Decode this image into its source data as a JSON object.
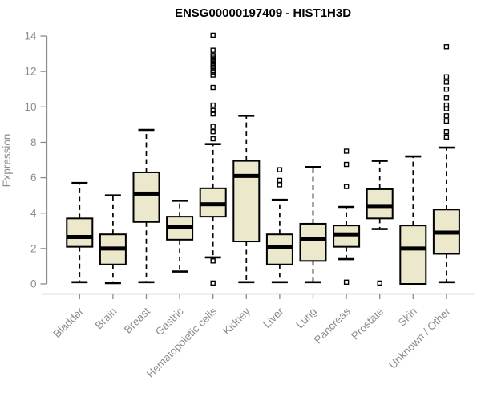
{
  "title": "ENSG00000197409 - HIST1H3D",
  "colors": {
    "box_fill": "#ece8cb",
    "box_stroke": "#000000",
    "median": "#000000",
    "whisker": "#000000",
    "outlier": "#000000",
    "axis": "#8c8c8c",
    "title": "#000000",
    "background": "#ffffff"
  },
  "chart_data": {
    "type": "boxplot",
    "title": "ENSG00000197409 - HIST1H3D",
    "xlabel": "",
    "ylabel": "Expression",
    "ylim": [
      -0.7,
      14.6
    ],
    "yticks": [
      0,
      2,
      4,
      6,
      8,
      10,
      12,
      14
    ],
    "grid": false,
    "categories": [
      "Bladder",
      "Brain",
      "Breast",
      "Gastric",
      "Hematopoietic cells",
      "Kidney",
      "Liver",
      "Lung",
      "Pancreas",
      "Prostate",
      "Skin",
      "Unknown / Other"
    ],
    "series": [
      {
        "name": "Bladder",
        "whislo": 0.1,
        "q1": 2.1,
        "med": 2.65,
        "q3": 3.7,
        "whishi": 5.7,
        "outliers": []
      },
      {
        "name": "Brain",
        "whislo": 0.05,
        "q1": 1.1,
        "med": 2.0,
        "q3": 2.8,
        "whishi": 5.0,
        "outliers": []
      },
      {
        "name": "Breast",
        "whislo": 0.1,
        "q1": 3.5,
        "med": 5.1,
        "q3": 6.3,
        "whishi": 8.7,
        "outliers": []
      },
      {
        "name": "Gastric",
        "whislo": 0.7,
        "q1": 2.5,
        "med": 3.2,
        "q3": 3.8,
        "whishi": 4.7,
        "outliers": []
      },
      {
        "name": "Hematopoietic cells",
        "whislo": 1.5,
        "q1": 3.8,
        "med": 4.5,
        "q3": 5.4,
        "whishi": 7.9,
        "outliers": [
          14.05,
          13.2,
          12.9,
          12.75,
          12.65,
          12.55,
          12.45,
          12.35,
          12.25,
          12.15,
          12.05,
          11.95,
          11.8,
          11.1,
          10.1,
          9.8,
          9.6,
          8.9,
          8.6,
          8.2,
          1.3,
          0.05
        ]
      },
      {
        "name": "Kidney",
        "whislo": 0.1,
        "q1": 2.4,
        "med": 6.1,
        "q3": 6.95,
        "whishi": 9.5,
        "outliers": []
      },
      {
        "name": "Liver",
        "whislo": 0.1,
        "q1": 1.1,
        "med": 2.1,
        "q3": 2.8,
        "whishi": 4.75,
        "outliers": [
          6.45,
          5.85,
          5.6
        ]
      },
      {
        "name": "Lung",
        "whislo": 0.1,
        "q1": 1.3,
        "med": 2.55,
        "q3": 3.4,
        "whishi": 6.6,
        "outliers": []
      },
      {
        "name": "Pancreas",
        "whislo": 1.4,
        "q1": 2.1,
        "med": 2.8,
        "q3": 3.3,
        "whishi": 4.35,
        "outliers": [
          7.5,
          6.75,
          5.5,
          0.1
        ]
      },
      {
        "name": "Prostate",
        "whislo": 3.1,
        "q1": 3.7,
        "med": 4.4,
        "q3": 5.35,
        "whishi": 6.95,
        "outliers": [
          0.05
        ]
      },
      {
        "name": "Skin",
        "whislo": 0.0,
        "q1": 0.0,
        "med": 2.0,
        "q3": 3.3,
        "whishi": 7.2,
        "outliers": []
      },
      {
        "name": "Unknown / Other",
        "whislo": 0.1,
        "q1": 1.7,
        "med": 2.9,
        "q3": 4.2,
        "whishi": 7.7,
        "outliers": [
          13.4,
          11.7,
          11.4,
          11.0,
          10.5,
          10.1,
          9.9,
          9.5,
          9.2,
          8.6,
          8.3
        ]
      }
    ]
  }
}
